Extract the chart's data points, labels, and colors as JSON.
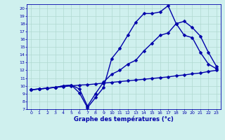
{
  "xlabel": "Graphe des températures (°c)",
  "bg_color": "#cff0ee",
  "line_color": "#0000aa",
  "grid_color": "#b0d8d0",
  "xlim": [
    -0.5,
    23.5
  ],
  "ylim": [
    7,
    20.5
  ],
  "yticks": [
    7,
    8,
    9,
    10,
    11,
    12,
    13,
    14,
    15,
    16,
    17,
    18,
    19,
    20
  ],
  "xticks": [
    0,
    1,
    2,
    3,
    4,
    5,
    6,
    7,
    8,
    9,
    10,
    11,
    12,
    13,
    14,
    15,
    16,
    17,
    18,
    19,
    20,
    21,
    22,
    23
  ],
  "line1_x": [
    0,
    1,
    2,
    3,
    4,
    5,
    6,
    7,
    8,
    9,
    10,
    11,
    12,
    13,
    14,
    15,
    16,
    17,
    18,
    19,
    20,
    21,
    22,
    23
  ],
  "line1_y": [
    9.5,
    9.6,
    9.7,
    9.8,
    9.9,
    10.0,
    10.1,
    10.15,
    10.25,
    10.35,
    10.45,
    10.55,
    10.65,
    10.75,
    10.85,
    10.95,
    11.05,
    11.15,
    11.3,
    11.4,
    11.55,
    11.65,
    11.85,
    12.0
  ],
  "line2_x": [
    0,
    1,
    2,
    3,
    4,
    5,
    6,
    7,
    8,
    9,
    10,
    11,
    12,
    13,
    14,
    15,
    16,
    17,
    18,
    19,
    20,
    21,
    22,
    23
  ],
  "line2_y": [
    9.5,
    9.6,
    9.7,
    9.8,
    10.0,
    10.1,
    9.6,
    7.4,
    9.0,
    10.5,
    11.5,
    12.0,
    12.8,
    13.3,
    14.5,
    15.5,
    16.5,
    16.8,
    18.0,
    16.5,
    16.2,
    14.3,
    12.8,
    12.2
  ],
  "line3_x": [
    0,
    1,
    2,
    3,
    4,
    5,
    6,
    7,
    8,
    9,
    10,
    11,
    12,
    13,
    14,
    15,
    16,
    17,
    18,
    19,
    20,
    21,
    22,
    23
  ],
  "line3_y": [
    9.5,
    9.6,
    9.7,
    9.8,
    10.0,
    10.1,
    9.1,
    7.2,
    8.5,
    9.8,
    13.5,
    14.8,
    16.5,
    18.2,
    19.3,
    19.3,
    19.5,
    20.3,
    18.0,
    18.3,
    17.5,
    16.4,
    14.3,
    12.5
  ],
  "marker": "D",
  "markersize": 2.5,
  "linewidth": 1.0
}
